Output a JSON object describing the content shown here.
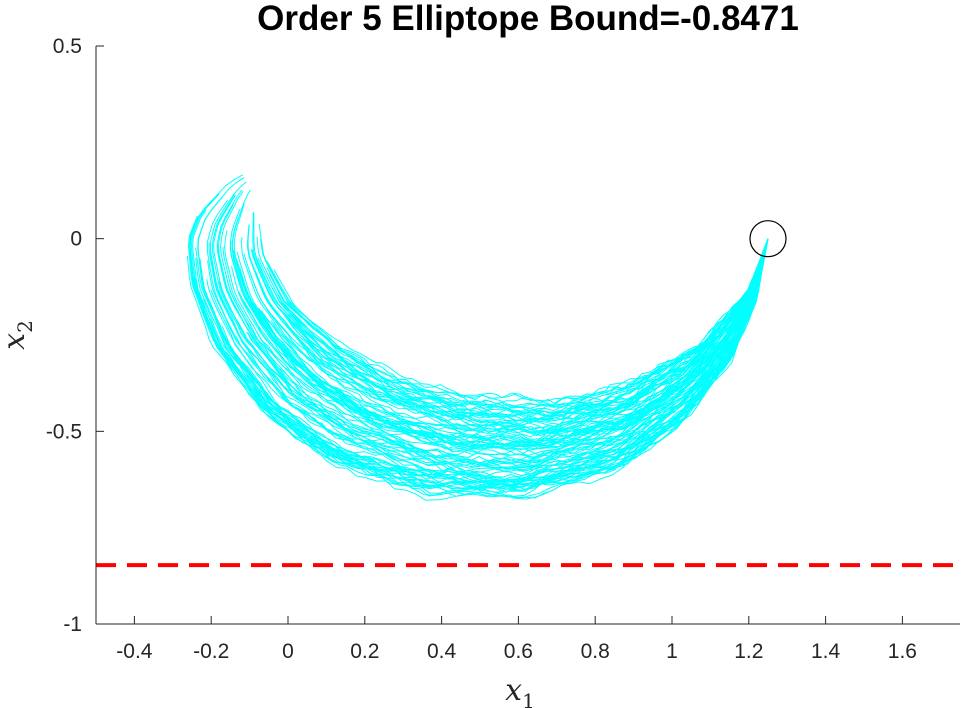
{
  "chart_data": {
    "type": "line",
    "title": "Order 5 Elliptope Bound=-0.8471",
    "xlabel": "x",
    "xlabel_sub": "1",
    "ylabel": "x",
    "ylabel_sub": "2",
    "xlim": [
      -0.5,
      1.75
    ],
    "ylim": [
      -1,
      0.5
    ],
    "xticks": [
      -0.4,
      -0.2,
      0,
      0.2,
      0.4,
      0.6,
      0.8,
      1,
      1.2,
      1.4,
      1.6
    ],
    "xtick_labels": [
      "-0.4",
      "-0.2",
      "0",
      "0.2",
      "0.4",
      "0.6",
      "0.8",
      "1",
      "1.2",
      "1.4",
      "1.6"
    ],
    "yticks": [
      -1,
      -0.5,
      0,
      0.5
    ],
    "ytick_labels": [
      "-1",
      "-0.5",
      "0",
      "0.5"
    ],
    "grid": false,
    "legend": "none",
    "bound": {
      "y": -0.8471,
      "color": "#ff0000",
      "style": "dashed"
    },
    "start_marker": {
      "x": 1.25,
      "y": 0,
      "shape": "circle",
      "color": "#000000"
    },
    "trajectories": {
      "color": "#00ffff",
      "count": 100,
      "start": [
        1.25,
        0
      ],
      "envelope_outer": [
        [
          1.25,
          0
        ],
        [
          1.22,
          -0.16
        ],
        [
          1.15,
          -0.32
        ],
        [
          1.02,
          -0.48
        ],
        [
          0.85,
          -0.6
        ],
        [
          0.6,
          -0.67
        ],
        [
          0.35,
          -0.66
        ],
        [
          0.1,
          -0.58
        ],
        [
          -0.08,
          -0.45
        ],
        [
          -0.2,
          -0.28
        ],
        [
          -0.26,
          -0.12
        ],
        [
          -0.27,
          0.0
        ],
        [
          -0.24,
          0.07
        ],
        [
          -0.16,
          0.15
        ],
        [
          -0.12,
          0.17
        ]
      ],
      "envelope_inner": [
        [
          1.25,
          0
        ],
        [
          1.2,
          -0.13
        ],
        [
          1.07,
          -0.27
        ],
        [
          0.9,
          -0.37
        ],
        [
          0.7,
          -0.42
        ],
        [
          0.5,
          -0.41
        ],
        [
          0.3,
          -0.36
        ],
        [
          0.15,
          -0.28
        ],
        [
          0.02,
          -0.17
        ],
        [
          -0.05,
          -0.05
        ],
        [
          -0.08,
          0.09
        ]
      ]
    }
  }
}
